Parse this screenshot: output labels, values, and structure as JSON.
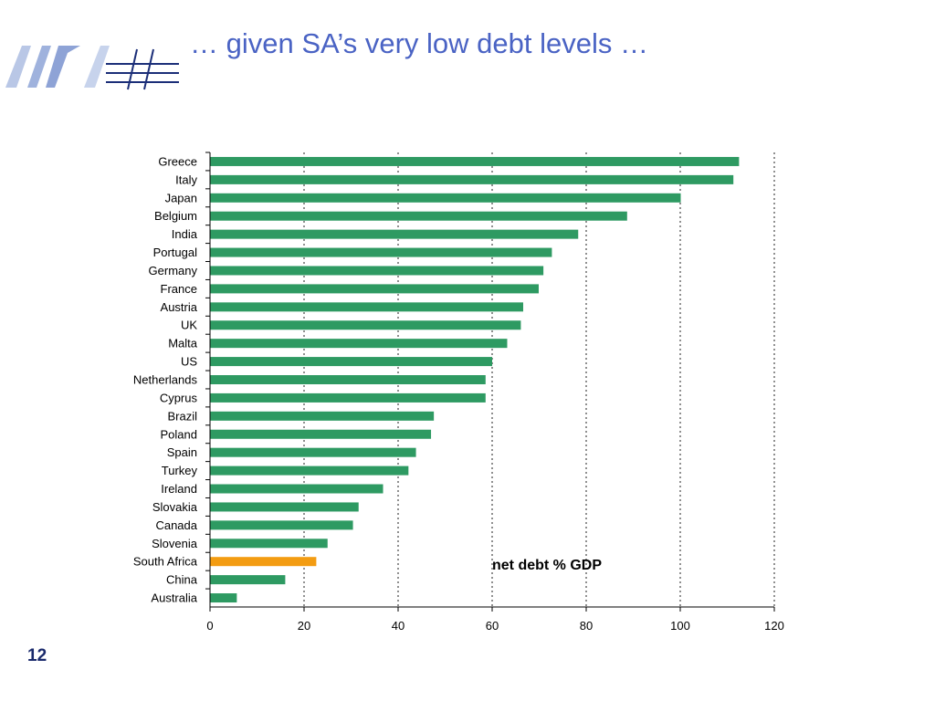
{
  "slide": {
    "title": "… given SA’s very low debt levels …",
    "page_number": "12"
  },
  "colors": {
    "bar": "#2e9a62",
    "highlight": "#f39c12",
    "title": "#4a63c4",
    "logo_light": "#b9c7e6",
    "logo_dark": "#1b2e78"
  },
  "chart_data": {
    "type": "bar",
    "orientation": "horizontal",
    "categories": [
      "Greece",
      "Italy",
      "Japan",
      "Belgium",
      "India",
      "Portugal",
      "Germany",
      "France",
      "Austria",
      "UK",
      "Malta",
      "US",
      "Netherlands",
      "Cyprus",
      "Brazil",
      "Poland",
      "Spain",
      "Turkey",
      "Ireland",
      "Slovakia",
      "Canada",
      "Slovenia",
      "South Africa",
      "China",
      "Australia"
    ],
    "values": [
      112.5,
      111.3,
      100.1,
      88.7,
      78.3,
      72.7,
      70.9,
      69.9,
      66.6,
      66.1,
      63.2,
      60.0,
      58.6,
      58.6,
      47.6,
      47.0,
      43.8,
      42.2,
      36.8,
      31.6,
      30.4,
      25.0,
      22.6,
      16.0,
      5.7
    ],
    "highlight_category": "South Africa",
    "xlim": [
      0,
      120
    ],
    "xticks": [
      0,
      20,
      40,
      60,
      80,
      100,
      120
    ],
    "annotation": "net debt % GDP",
    "grid": "vertical dotted"
  }
}
